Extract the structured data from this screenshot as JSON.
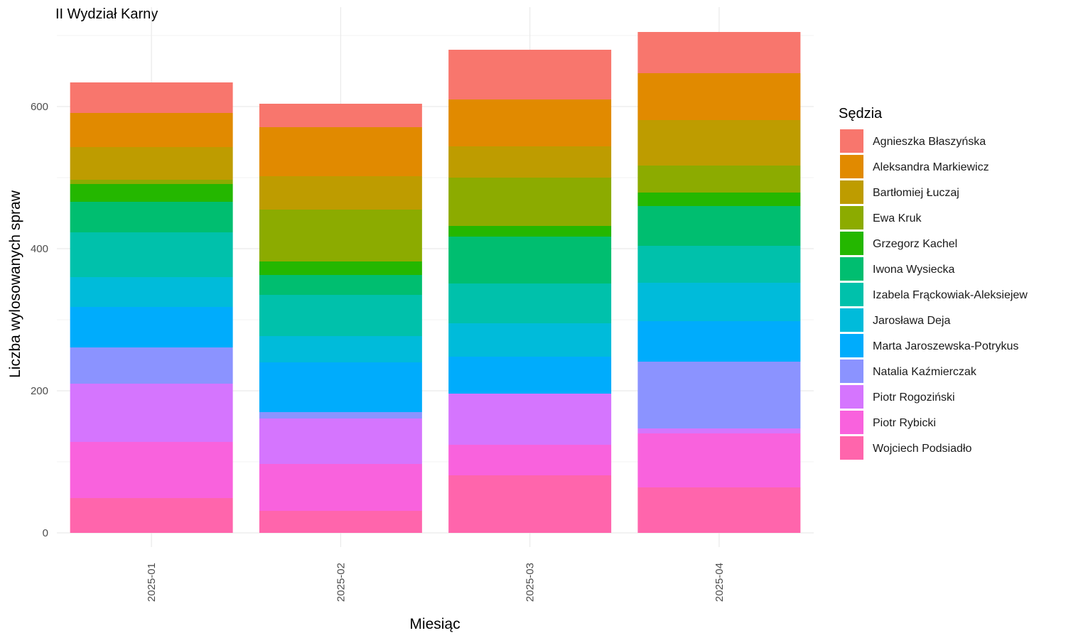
{
  "chart_data": {
    "type": "bar",
    "stacked": true,
    "title": "II Wydział Karny",
    "xlabel": "Miesiąc",
    "ylabel": "Liczba wylosowanych spraw",
    "ylim": [
      0,
      720
    ],
    "yticks": [
      0,
      200,
      400,
      600
    ],
    "grid": true,
    "legend_title": "Sędzia",
    "legend_position": "right",
    "categories": [
      "2025-01",
      "2025-02",
      "2025-03",
      "2025-04"
    ],
    "series": [
      {
        "name": "Agnieszka Błaszyńska",
        "color": "#F8766D",
        "values": [
          43,
          33,
          70,
          58
        ]
      },
      {
        "name": "Aleksandra Markiewicz",
        "color": "#E18A00",
        "values": [
          48,
          69,
          66,
          66
        ]
      },
      {
        "name": "Bartłomiej Łuczaj",
        "color": "#BE9C00",
        "values": [
          46,
          47,
          44,
          64
        ]
      },
      {
        "name": "Ewa Kruk",
        "color": "#8CAB00",
        "values": [
          6,
          73,
          68,
          38
        ]
      },
      {
        "name": "Grzegorz Kachel",
        "color": "#24B700",
        "values": [
          25,
          19,
          15,
          19
        ]
      },
      {
        "name": "Iwona Wysiecka",
        "color": "#00BE70",
        "values": [
          43,
          28,
          66,
          56
        ]
      },
      {
        "name": "Izabela Frąckowiak-Aleksiejew",
        "color": "#00C1AB",
        "values": [
          63,
          58,
          56,
          52
        ]
      },
      {
        "name": "Jarosława Deja",
        "color": "#00BBDA",
        "values": [
          42,
          37,
          47,
          54
        ]
      },
      {
        "name": "Marta Jaroszewska-Potrykus",
        "color": "#00ACFC",
        "values": [
          57,
          70,
          52,
          57
        ]
      },
      {
        "name": "Natalia Kaźmierczak",
        "color": "#8B93FF",
        "values": [
          51,
          9,
          0,
          94
        ]
      },
      {
        "name": "Piotr Rogoziński",
        "color": "#D575FE",
        "values": [
          82,
          64,
          72,
          7
        ]
      },
      {
        "name": "Piotr Rybicki",
        "color": "#F962DD",
        "values": [
          79,
          66,
          43,
          76
        ]
      },
      {
        "name": "Wojciech Podsiadło",
        "color": "#FF65AC",
        "values": [
          49,
          31,
          81,
          64
        ]
      }
    ]
  }
}
